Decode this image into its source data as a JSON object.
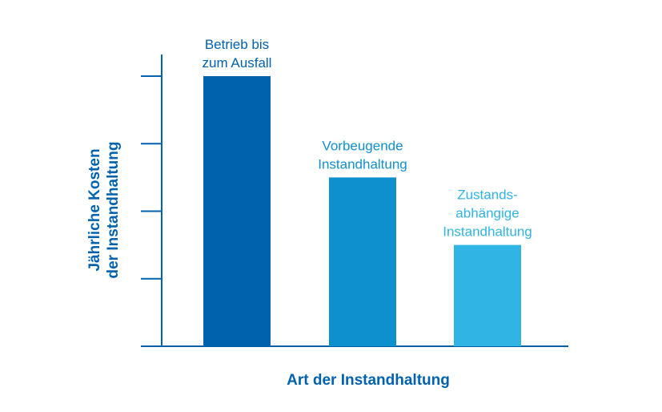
{
  "chart_data": {
    "type": "bar",
    "xlabel": "Art der Instandhaltung",
    "ylabel_lines": [
      "Jährliche Kosten",
      "der Instandhaltung"
    ],
    "ylim": [
      0,
      4
    ],
    "y_ticks_count": 4,
    "y_tick_labels_shown": false,
    "grid": false,
    "categories": [
      [
        "Betrieb bis",
        "zum Ausfall"
      ],
      [
        "Vorbeugende",
        "Instandhaltung"
      ],
      [
        "Zustands-",
        "abhängige",
        "Instandhaltung"
      ]
    ],
    "values": [
      4.0,
      2.5,
      1.5
    ],
    "colors": [
      "#0062ad",
      "#0e8fce",
      "#30b4e3"
    ],
    "label_colors": [
      "#0062ad",
      "#1190cf",
      "#30b4e3"
    ],
    "axis_color": "#0062ad"
  }
}
